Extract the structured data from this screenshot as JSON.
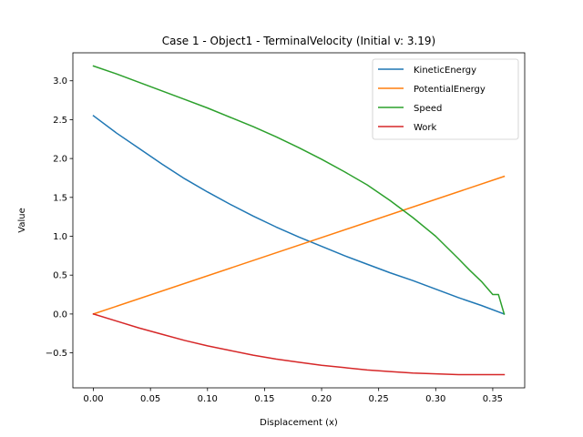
{
  "chart_data": {
    "type": "line",
    "title": "Case 1 - Object1 - TerminalVelocity (Initial v: 3.19)",
    "xlabel": "Displacement (x)",
    "ylabel": "Value",
    "xlim": [
      -0.018,
      0.378
    ],
    "ylim": [
      -0.95,
      3.36
    ],
    "xticks": [
      0.0,
      0.05,
      0.1,
      0.15,
      0.2,
      0.25,
      0.3,
      0.35
    ],
    "xtick_labels": [
      "0.00",
      "0.05",
      "0.10",
      "0.15",
      "0.20",
      "0.25",
      "0.30",
      "0.35"
    ],
    "yticks": [
      -0.5,
      0.0,
      0.5,
      1.0,
      1.5,
      2.0,
      2.5,
      3.0
    ],
    "ytick_labels": [
      "−0.5",
      "0.0",
      "0.5",
      "1.0",
      "1.5",
      "2.0",
      "2.5",
      "3.0"
    ],
    "grid": false,
    "legend_position": "top-right",
    "series": [
      {
        "name": "KineticEnergy",
        "color": "#1f77b4",
        "x": [
          0.0,
          0.02,
          0.04,
          0.06,
          0.08,
          0.1,
          0.12,
          0.14,
          0.16,
          0.18,
          0.2,
          0.22,
          0.24,
          0.26,
          0.28,
          0.3,
          0.32,
          0.34,
          0.36
        ],
        "y": [
          2.55,
          2.33,
          2.13,
          1.93,
          1.74,
          1.57,
          1.41,
          1.26,
          1.12,
          0.99,
          0.87,
          0.75,
          0.64,
          0.53,
          0.43,
          0.32,
          0.21,
          0.11,
          0.0
        ]
      },
      {
        "name": "PotentialEnergy",
        "color": "#ff7f0e",
        "x": [
          0.0,
          0.36
        ],
        "y": [
          0.0,
          1.77
        ]
      },
      {
        "name": "Speed",
        "color": "#2ca02c",
        "x": [
          0.0,
          0.02,
          0.04,
          0.06,
          0.08,
          0.1,
          0.12,
          0.14,
          0.16,
          0.18,
          0.2,
          0.22,
          0.24,
          0.26,
          0.28,
          0.3,
          0.32,
          0.33,
          0.34,
          0.35,
          0.355,
          0.36
        ],
        "y": [
          3.19,
          3.09,
          2.98,
          2.87,
          2.76,
          2.65,
          2.53,
          2.41,
          2.28,
          2.14,
          1.99,
          1.83,
          1.66,
          1.46,
          1.24,
          1.0,
          0.71,
          0.56,
          0.42,
          0.25,
          0.25,
          0.0
        ]
      },
      {
        "name": "Work",
        "color": "#d62728",
        "x": [
          0.0,
          0.02,
          0.04,
          0.06,
          0.08,
          0.1,
          0.12,
          0.14,
          0.16,
          0.18,
          0.2,
          0.22,
          0.24,
          0.26,
          0.28,
          0.3,
          0.32,
          0.34,
          0.36
        ],
        "y": [
          0.0,
          -0.09,
          -0.18,
          -0.26,
          -0.34,
          -0.41,
          -0.47,
          -0.53,
          -0.58,
          -0.62,
          -0.66,
          -0.69,
          -0.72,
          -0.74,
          -0.76,
          -0.77,
          -0.78,
          -0.78,
          -0.78
        ]
      }
    ]
  }
}
